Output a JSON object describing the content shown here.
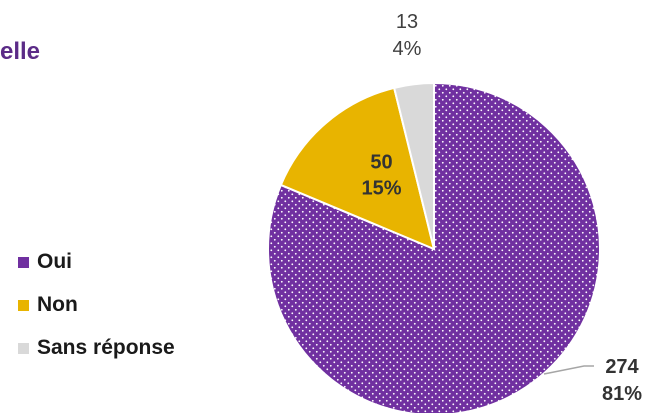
{
  "title_fragment": "elle",
  "chart_data": {
    "type": "pie",
    "categories": [
      "Oui",
      "Non",
      "Sans réponse"
    ],
    "values": [
      274,
      50,
      13
    ],
    "percent_labels": [
      "81%",
      "15%",
      "4%"
    ],
    "value_labels": [
      "274",
      "50",
      "13"
    ],
    "colors": [
      "#7030a0",
      "#e8b400",
      "#d9d9d9"
    ],
    "slice_pattern": [
      "dotted",
      "solid",
      "solid"
    ],
    "legend_position": "left",
    "start_angle": "12 o'clock, clockwise"
  },
  "legend": {
    "items": [
      {
        "label": "Oui",
        "color": "#7030a0"
      },
      {
        "label": "Non",
        "color": "#e8b400"
      },
      {
        "label": "Sans réponse",
        "color": "#d9d9d9"
      }
    ]
  }
}
